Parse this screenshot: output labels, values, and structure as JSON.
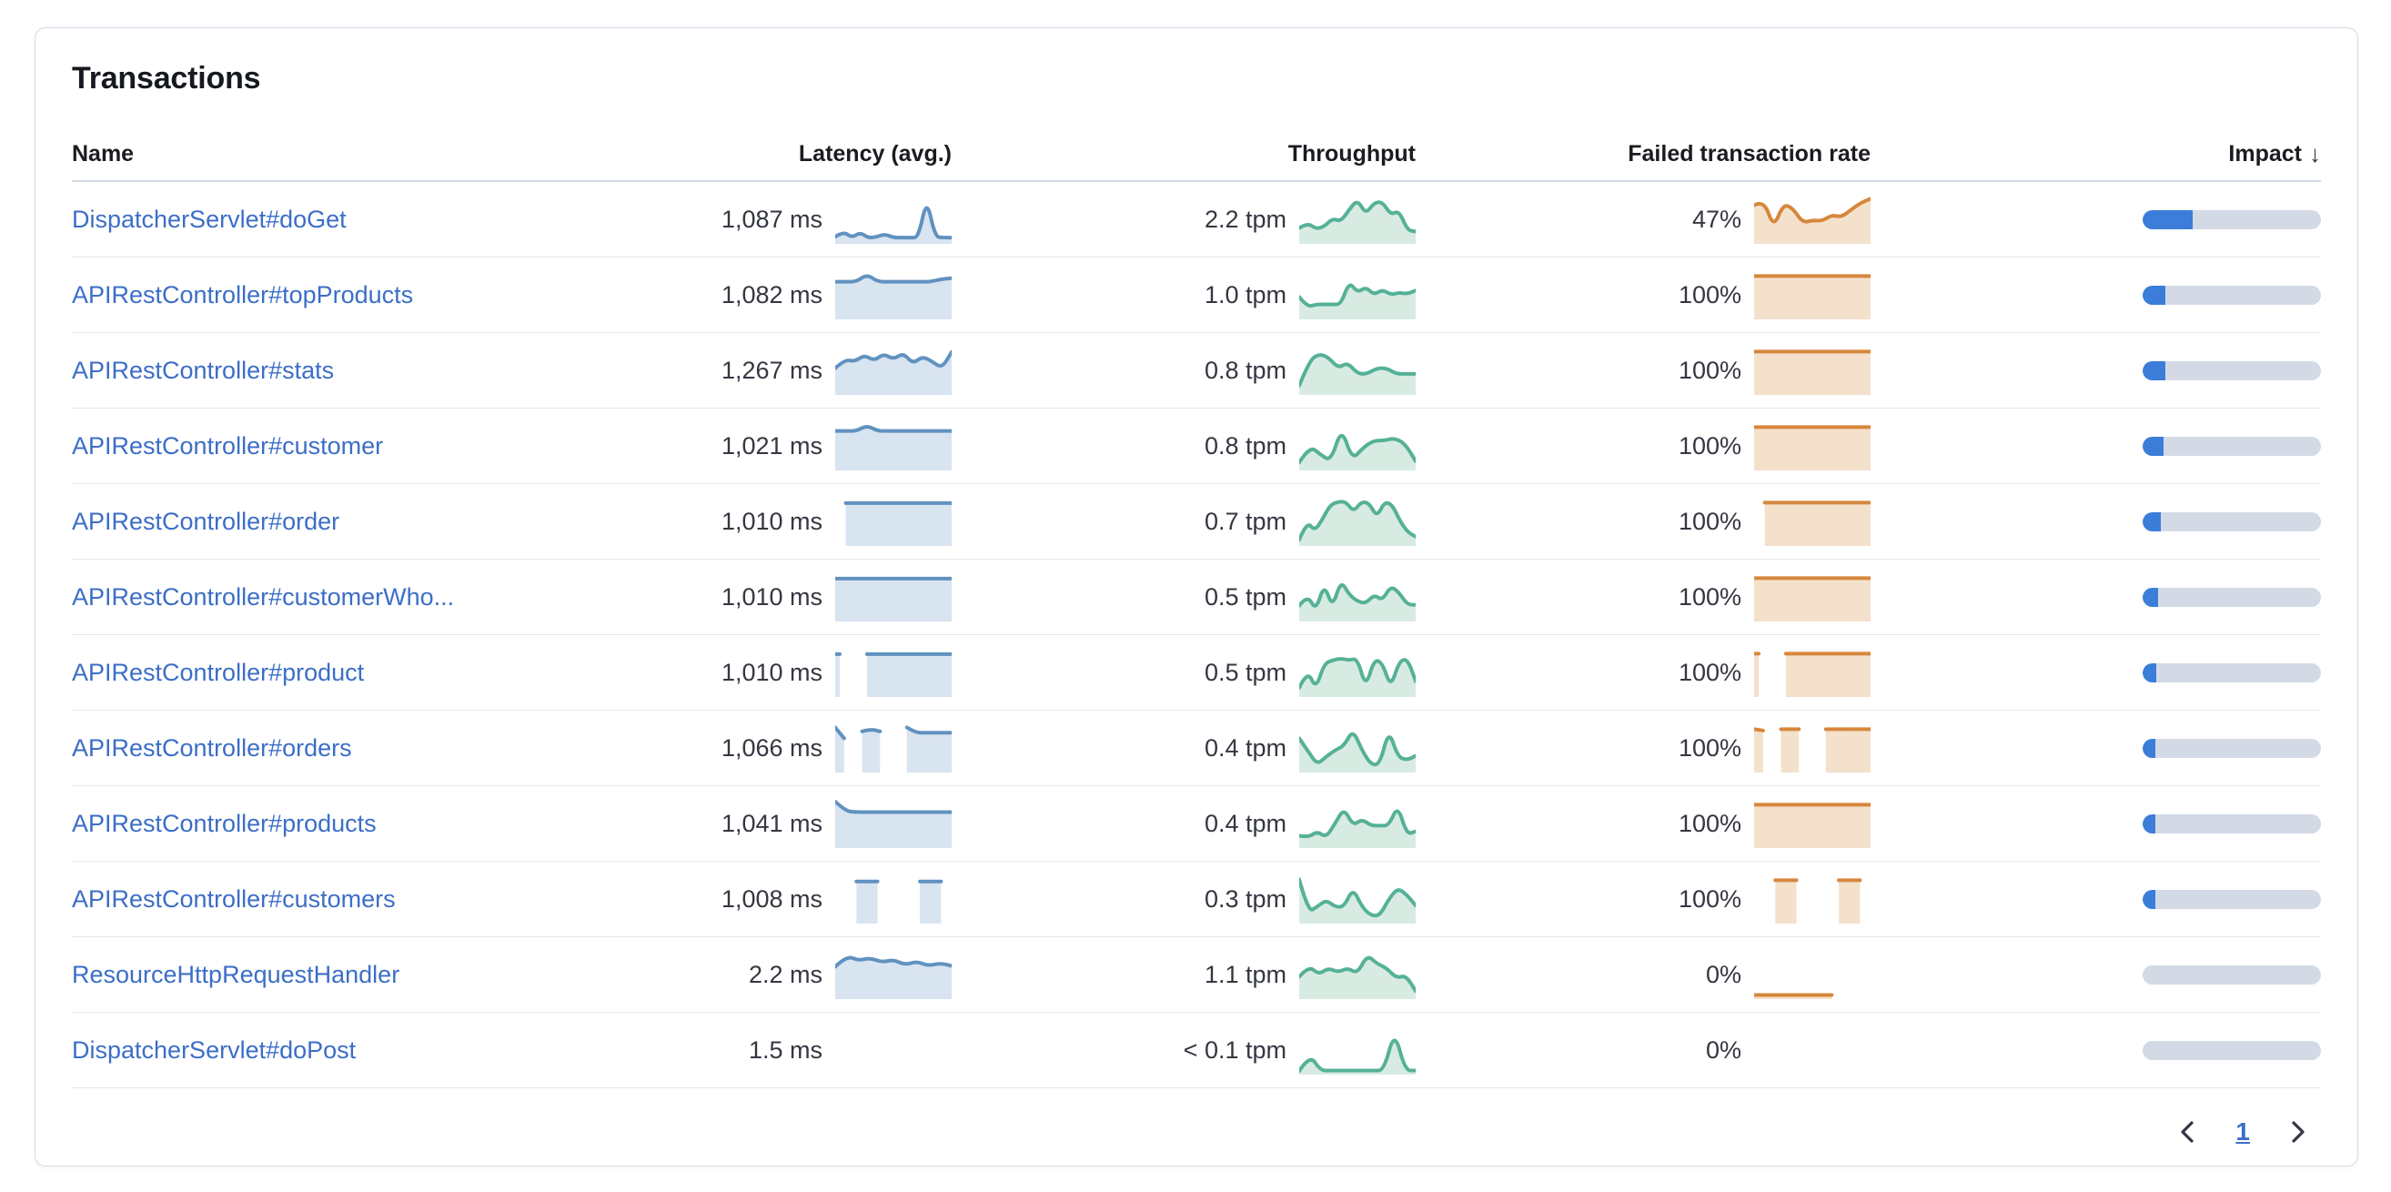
{
  "panel": {
    "title": "Transactions"
  },
  "table": {
    "columns": [
      {
        "id": "name",
        "label": "Name"
      },
      {
        "id": "latency",
        "label": "Latency (avg.)"
      },
      {
        "id": "throughput",
        "label": "Throughput"
      },
      {
        "id": "failed",
        "label": "Failed transaction rate"
      },
      {
        "id": "impact",
        "label": "Impact",
        "sorted": "desc"
      }
    ],
    "rows": [
      {
        "name": "DispatcherServlet#doGet",
        "latency": "1,087 ms",
        "throughput": "2.2 tpm",
        "failed_rate": "47%",
        "impact": 0.28,
        "latency_spark": [
          0.1,
          0.22,
          0.08,
          0.2,
          0.07,
          0.1,
          0.16,
          0.08,
          0.08,
          0.08,
          0.08,
          0.98,
          0.1,
          0.08,
          0.08
        ],
        "throughput_spark": [
          0.3,
          0.42,
          0.28,
          0.33,
          0.52,
          0.45,
          0.72,
          0.95,
          0.62,
          0.88,
          0.9,
          0.6,
          0.7,
          0.25,
          0.22
        ],
        "failed_spark": [
          0.82,
          0.95,
          0.3,
          0.85,
          0.75,
          0.42,
          0.48,
          0.46,
          0.6,
          0.55,
          0.72,
          0.88,
          0.97
        ]
      },
      {
        "name": "APIRestController#topProducts",
        "latency": "1,082 ms",
        "throughput": "1.0 tpm",
        "failed_rate": "100%",
        "impact": 0.13,
        "latency_spark": [
          0.8,
          0.8,
          0.8,
          0.97,
          0.8,
          0.8,
          0.8,
          0.8,
          0.8,
          0.8,
          0.86,
          0.88
        ],
        "throughput_spark": [
          0.45,
          0.22,
          0.28,
          0.28,
          0.28,
          0.28,
          0.8,
          0.55,
          0.68,
          0.5,
          0.62,
          0.5,
          0.55,
          0.52,
          0.6
        ],
        "failed_spark": [
          0.93,
          0.93,
          0.93,
          0.93,
          0.93,
          0.93,
          0.93,
          0.93,
          0.93,
          0.93,
          0.93,
          0.93
        ]
      },
      {
        "name": "APIRestController#stats",
        "latency": "1,267 ms",
        "throughput": "0.8 tpm",
        "failed_rate": "100%",
        "impact": 0.125,
        "latency_spark": [
          0.55,
          0.75,
          0.7,
          0.85,
          0.72,
          0.88,
          0.75,
          0.9,
          0.65,
          0.82,
          0.7,
          0.55,
          0.92
        ],
        "throughput_spark": [
          0.15,
          0.7,
          0.88,
          0.8,
          0.55,
          0.68,
          0.42,
          0.42,
          0.55,
          0.55,
          0.42,
          0.42,
          0.42
        ],
        "failed_spark": [
          0.93,
          0.93,
          0.93,
          0.93,
          0.93,
          0.93,
          0.93,
          0.93,
          0.93,
          0.93,
          0.93,
          0.93
        ]
      },
      {
        "name": "APIRestController#customer",
        "latency": "1,021 ms",
        "throughput": "0.8 tpm",
        "failed_rate": "100%",
        "impact": 0.115,
        "latency_spark": [
          0.84,
          0.84,
          0.84,
          0.97,
          0.84,
          0.84,
          0.84,
          0.84,
          0.84,
          0.84,
          0.84,
          0.84
        ],
        "throughput_spark": [
          0.12,
          0.5,
          0.3,
          0.15,
          0.92,
          0.18,
          0.45,
          0.62,
          0.62,
          0.68,
          0.55,
          0.15
        ],
        "failed_spark": [
          0.93,
          0.93,
          0.93,
          0.93,
          0.93,
          0.93,
          0.93,
          0.93,
          0.93,
          0.93,
          0.93,
          0.93
        ]
      },
      {
        "name": "APIRestController#order",
        "latency": "1,010 ms",
        "throughput": "0.7 tpm",
        "failed_rate": "100%",
        "impact": 0.1,
        "latency_spark": [
          null,
          0.92,
          0.92,
          0.92,
          0.92,
          0.92,
          0.92,
          0.92,
          0.92,
          0.92,
          0.92,
          0.92
        ],
        "throughput_spark": [
          0.08,
          0.5,
          0.28,
          0.55,
          0.88,
          0.95,
          0.95,
          0.72,
          0.95,
          0.92,
          0.6,
          0.95,
          0.88,
          0.5,
          0.25,
          0.15
        ],
        "failed_spark": [
          null,
          0.93,
          0.93,
          0.93,
          0.93,
          0.93,
          0.93,
          0.93,
          0.93,
          0.93,
          0.93,
          0.93
        ]
      },
      {
        "name": "APIRestController#customerWho...",
        "latency": "1,010 ms",
        "throughput": "0.5 tpm",
        "failed_rate": "100%",
        "impact": 0.085,
        "latency_spark": [
          0.92,
          0.92,
          0.92,
          0.92,
          0.92,
          0.92,
          0.92,
          0.92,
          0.92,
          0.92,
          0.92,
          0.92
        ],
        "throughput_spark": [
          0.3,
          0.55,
          0.18,
          0.8,
          0.25,
          0.88,
          0.55,
          0.4,
          0.35,
          0.55,
          0.42,
          0.75,
          0.6,
          0.32,
          0.32
        ],
        "failed_spark": [
          0.93,
          0.93,
          0.93,
          0.93,
          0.93,
          0.93,
          0.93,
          0.93,
          0.93,
          0.93,
          0.93,
          0.93
        ]
      },
      {
        "name": "APIRestController#product",
        "latency": "1,010 ms",
        "throughput": "0.5 tpm",
        "failed_rate": "100%",
        "impact": 0.075,
        "latency_spark": [
          0.92,
          null,
          null,
          0.92,
          0.92,
          0.92,
          0.92,
          0.92,
          0.92,
          0.92,
          0.92,
          0.92
        ],
        "throughput_spark": [
          0.15,
          0.55,
          0.12,
          0.7,
          0.78,
          0.82,
          0.78,
          0.82,
          0.15,
          0.8,
          0.72,
          0.15,
          0.75,
          0.82,
          0.3
        ],
        "failed_spark": [
          0.93,
          null,
          null,
          0.93,
          0.93,
          0.93,
          0.93,
          0.93,
          0.93,
          0.93,
          0.93,
          0.93
        ]
      },
      {
        "name": "APIRestController#orders",
        "latency": "1,066 ms",
        "throughput": "0.4 tpm",
        "failed_rate": "100%",
        "impact": 0.07,
        "latency_spark": [
          0.97,
          0.72,
          null,
          0.88,
          0.93,
          0.88,
          null,
          null,
          0.97,
          0.85,
          0.85,
          0.85,
          0.85,
          0.85
        ],
        "throughput_spark": [
          0.72,
          0.42,
          0.12,
          0.3,
          0.45,
          0.55,
          0.92,
          0.45,
          0.12,
          0.12,
          0.92,
          0.3,
          0.22,
          0.32
        ],
        "failed_spark": [
          0.93,
          0.9,
          null,
          0.93,
          0.93,
          0.93,
          null,
          null,
          0.93,
          0.93,
          0.93,
          0.93,
          0.93,
          0.93
        ]
      },
      {
        "name": "APIRestController#products",
        "latency": "1,041 ms",
        "throughput": "0.4 tpm",
        "failed_rate": "100%",
        "impact": 0.065,
        "latency_spark": [
          1.0,
          0.78,
          0.76,
          0.76,
          0.76,
          0.76,
          0.76,
          0.76,
          0.76,
          0.76,
          0.76,
          0.76
        ],
        "throughput_spark": [
          0.22,
          0.18,
          0.32,
          0.18,
          0.5,
          0.85,
          0.45,
          0.6,
          0.45,
          0.45,
          0.45,
          0.92,
          0.25,
          0.32
        ],
        "failed_spark": [
          0.93,
          0.93,
          0.93,
          0.93,
          0.93,
          0.93,
          0.93,
          0.93,
          0.93,
          0.93,
          0.93,
          0.93
        ]
      },
      {
        "name": "APIRestController#customers",
        "latency": "1,008 ms",
        "throughput": "0.3 tpm",
        "failed_rate": "100%",
        "impact": 0.05,
        "latency_spark": [
          null,
          null,
          0.9,
          0.9,
          0.9,
          null,
          null,
          null,
          0.9,
          0.9,
          0.9,
          null
        ],
        "throughput_spark": [
          0.95,
          0.2,
          0.32,
          0.48,
          0.32,
          0.32,
          0.75,
          0.32,
          0.12,
          0.12,
          0.5,
          0.75,
          0.6,
          0.35
        ],
        "failed_spark": [
          null,
          null,
          0.93,
          0.93,
          0.93,
          null,
          null,
          null,
          0.93,
          0.93,
          0.93,
          null
        ]
      },
      {
        "name": "ResourceHttpRequestHandler",
        "latency": "2.2 ms",
        "throughput": "1.1 tpm",
        "failed_rate": "0%",
        "impact": 0,
        "latency_spark": [
          0.68,
          0.93,
          0.82,
          0.88,
          0.78,
          0.84,
          0.72,
          0.8,
          0.7,
          0.76,
          0.7
        ],
        "throughput_spark": [
          0.45,
          0.7,
          0.5,
          0.65,
          0.55,
          0.65,
          0.52,
          0.95,
          0.75,
          0.65,
          0.42,
          0.48,
          0.12
        ],
        "failed_spark": [
          0.03,
          0.03,
          0.03,
          0.03,
          0.03,
          0.03,
          0.03,
          null,
          null,
          null
        ]
      },
      {
        "name": "DispatcherServlet#doPost",
        "latency": "1.5 ms",
        "throughput": "< 0.1 tpm",
        "failed_rate": "0%",
        "impact": 0,
        "latency_spark": [],
        "throughput_spark": [
          0.02,
          0.4,
          0.03,
          0.03,
          0.03,
          0.03,
          0.03,
          0.03,
          0.03,
          0.95,
          0.03,
          0.03
        ],
        "failed_spark": []
      }
    ]
  },
  "icons": {
    "sort_desc": "↓"
  },
  "pagination": {
    "current_page": "1"
  },
  "colors": {
    "link": "#3c6ec7",
    "latency_line": "#6092C0",
    "latency_fill": "#D9E4F1",
    "throughput_line": "#55B197",
    "throughput_fill": "#D8EBE2",
    "failed_line": "#D6873C",
    "failed_fill": "#F4E1CC",
    "impact_fill": "#3B7DD8",
    "impact_track": "#D3DAE6"
  }
}
